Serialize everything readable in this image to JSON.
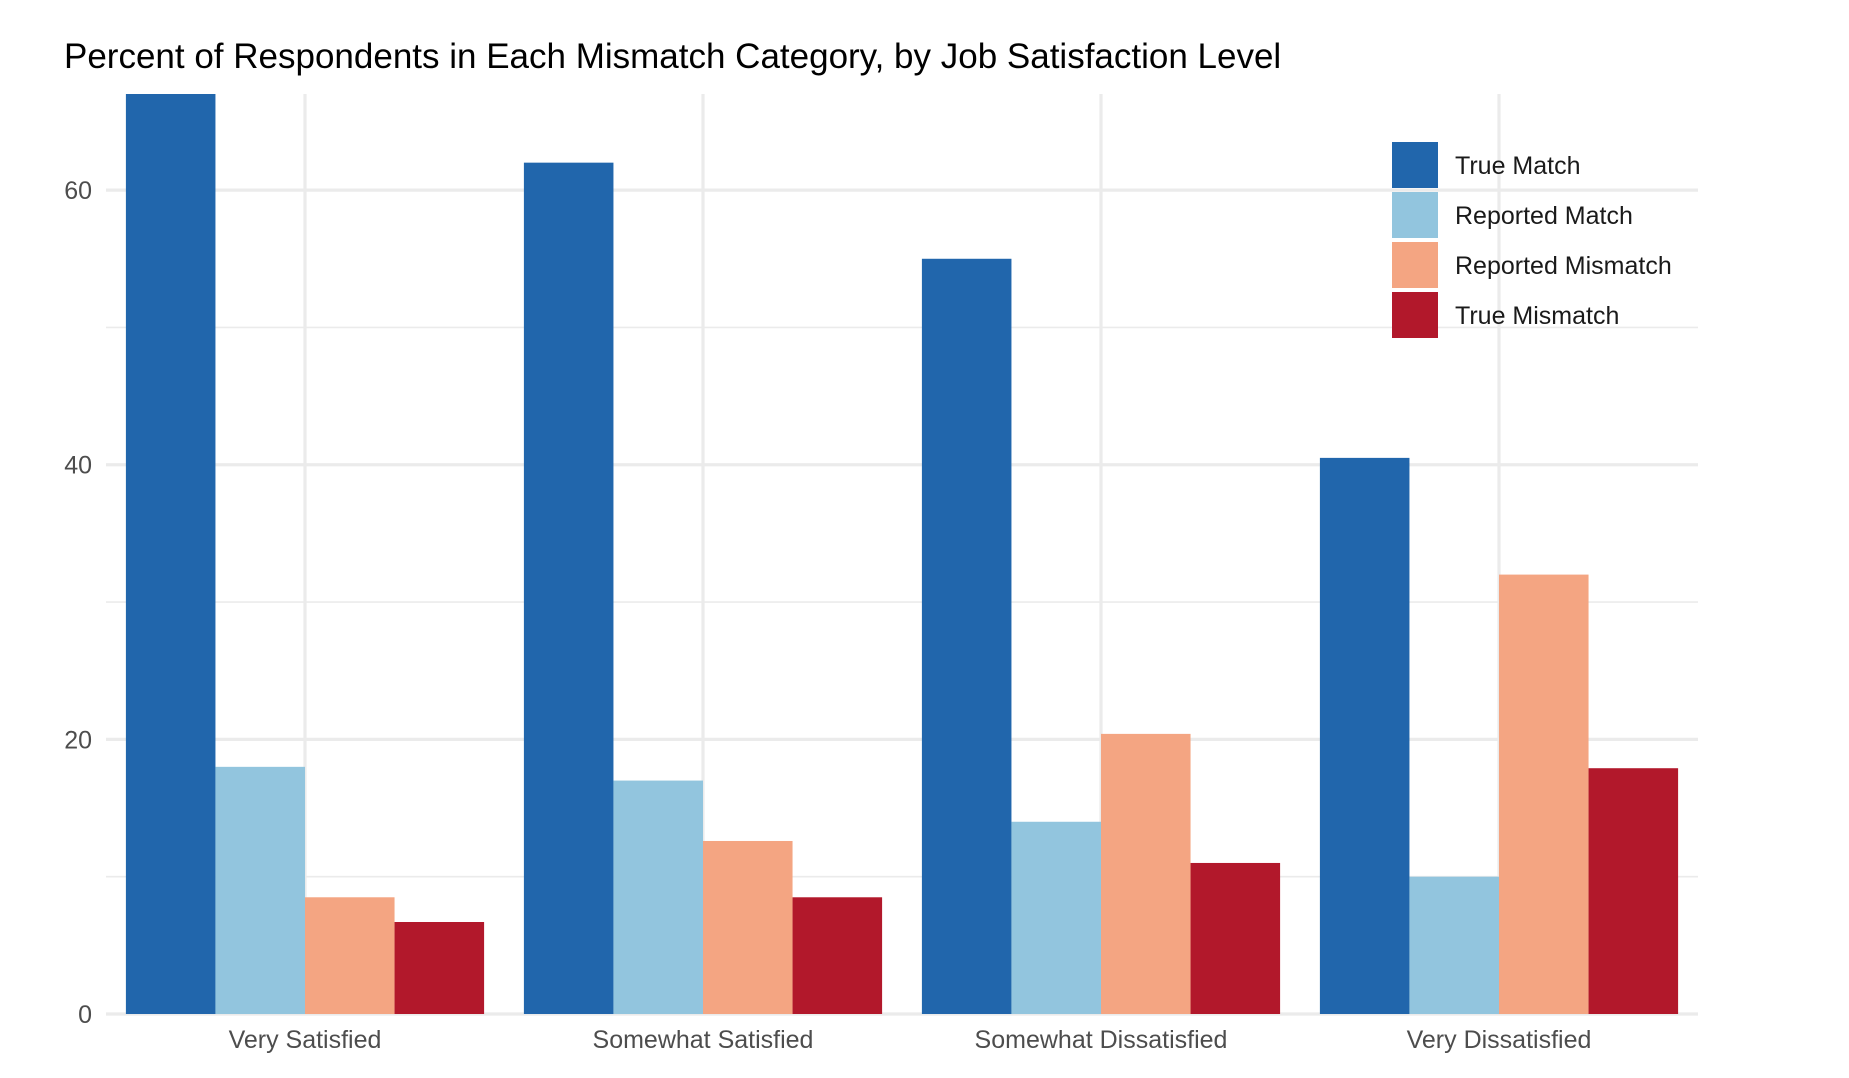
{
  "chart_data": {
    "type": "bar",
    "title": "Percent of Respondents in Each Mismatch Category, by Job Satisfaction Level",
    "xlabel": "",
    "ylabel": "",
    "categories": [
      "Very Satisfied",
      "Somewhat Satisfied",
      "Somewhat Dissatisfied",
      "Very Dissatisfied"
    ],
    "series": [
      {
        "name": "True Match",
        "color": "#2166ac",
        "values": [
          67,
          62,
          55,
          40.5
        ]
      },
      {
        "name": "Reported Match",
        "color": "#92c5de",
        "values": [
          18,
          17,
          14,
          10
        ]
      },
      {
        "name": "Reported Mismatch",
        "color": "#f4a582",
        "values": [
          8.5,
          12.6,
          20.4,
          32
        ]
      },
      {
        "name": "True Mismatch",
        "color": "#b2182b",
        "values": [
          6.7,
          8.5,
          11,
          17.9
        ]
      }
    ],
    "ylim": [
      0,
      67
    ],
    "yticks": [
      0,
      20,
      40,
      60
    ],
    "grid": true,
    "legend_position": "top-right"
  }
}
